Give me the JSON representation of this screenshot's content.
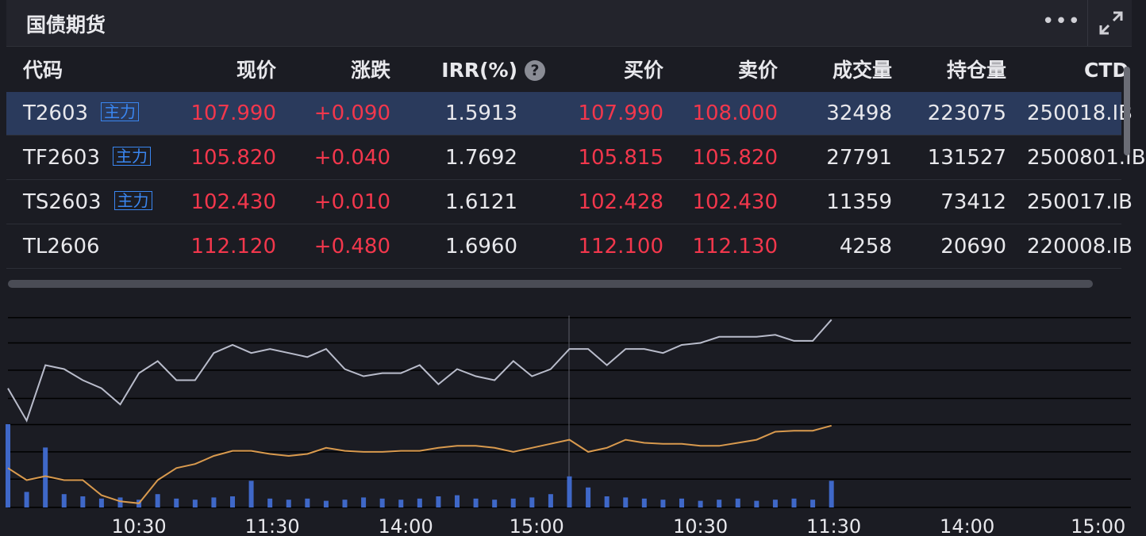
{
  "header": {
    "title": "国债期货"
  },
  "table": {
    "columns": [
      "代码",
      "现价",
      "涨跌",
      "IRR(%)",
      "买价",
      "卖价",
      "成交量",
      "持仓量",
      "CTD"
    ],
    "rows": [
      {
        "code": "T2603",
        "tag": "主力",
        "price": "107.990",
        "change": "+0.090",
        "irr": "1.5913",
        "bid": "107.990",
        "ask": "108.000",
        "volume": "32498",
        "oi": "223075",
        "ctd": "250018.IB"
      },
      {
        "code": "TF2603",
        "tag": "主力",
        "price": "105.820",
        "change": "+0.040",
        "irr": "1.7692",
        "bid": "105.815",
        "ask": "105.820",
        "volume": "27791",
        "oi": "131527",
        "ctd": "2500801.IB"
      },
      {
        "code": "TS2603",
        "tag": "主力",
        "price": "102.430",
        "change": "+0.010",
        "irr": "1.6121",
        "bid": "102.428",
        "ask": "102.430",
        "volume": "11359",
        "oi": "73412",
        "ctd": "250017.IB"
      },
      {
        "code": "TL2606",
        "price": "112.120",
        "change": "+0.480",
        "irr": "1.6960",
        "bid": "112.100",
        "ask": "112.130",
        "volume": "4258",
        "oi": "20690",
        "ctd": "220008.IB"
      }
    ]
  },
  "chart_data": {
    "type": "line",
    "x": [
      0,
      8,
      16,
      24,
      32,
      40,
      48,
      56,
      64,
      72,
      80,
      88,
      96,
      104,
      112,
      120,
      128,
      136,
      144,
      152,
      160,
      168,
      176,
      184,
      192,
      200,
      208,
      216,
      224,
      232,
      240,
      248,
      256,
      264,
      272,
      280,
      288,
      296,
      304,
      312,
      320,
      328,
      336,
      344,
      352
    ],
    "xlim": [
      0,
      480
    ],
    "xticks": [
      {
        "value": 56,
        "label": "10:30"
      },
      {
        "value": 113,
        "label": "11:30"
      },
      {
        "value": 170,
        "label": "14:00"
      },
      {
        "value": 226,
        "label": "15:00"
      },
      {
        "value": 296,
        "label": "10:30"
      },
      {
        "value": 353,
        "label": "11:30"
      },
      {
        "value": 410,
        "label": "14:00"
      },
      {
        "value": 466,
        "label": "15:00"
      }
    ],
    "ylim": [
      107.8,
      108.02
    ],
    "yticks": [
      107.804,
      107.832,
      107.859,
      107.886,
      107.912,
      107.94,
      107.967,
      107.992
    ],
    "y2lim": [
      0,
      1000
    ],
    "grid": true,
    "series": [
      {
        "color": "#b9bccb",
        "values": [
          107.922,
          107.89,
          107.945,
          107.941,
          107.93,
          107.922,
          107.906,
          107.937,
          107.949,
          107.93,
          107.93,
          107.957,
          107.965,
          107.957,
          107.961,
          107.957,
          107.953,
          107.961,
          107.941,
          107.934,
          107.937,
          107.937,
          107.945,
          107.926,
          107.941,
          107.934,
          107.93,
          107.949,
          107.934,
          107.941,
          107.961,
          107.961,
          107.945,
          107.961,
          107.961,
          107.957,
          107.965,
          107.967,
          107.973,
          107.973,
          107.973,
          107.975,
          107.969,
          107.969,
          107.99
        ]
      },
      {
        "color": "#d99a4e",
        "values": [
          107.843,
          107.831,
          107.835,
          107.831,
          107.831,
          107.816,
          107.81,
          107.808,
          107.831,
          107.843,
          107.847,
          107.855,
          107.86,
          107.86,
          107.857,
          107.855,
          107.857,
          107.863,
          107.86,
          107.859,
          107.859,
          107.86,
          107.86,
          107.863,
          107.865,
          107.865,
          107.863,
          107.859,
          107.863,
          107.867,
          107.871,
          107.859,
          107.863,
          107.871,
          107.868,
          107.867,
          107.867,
          107.865,
          107.865,
          107.868,
          107.871,
          107.879,
          107.88,
          107.88,
          107.885
        ]
      },
      {
        "type": "bar",
        "axis": "y2",
        "color": "#3f68c8",
        "values": [
          375,
          70,
          270,
          60,
          50,
          40,
          45,
          35,
          60,
          40,
          35,
          45,
          50,
          120,
          40,
          35,
          40,
          30,
          35,
          45,
          40,
          35,
          40,
          50,
          55,
          40,
          35,
          40,
          45,
          60,
          140,
          90,
          50,
          45,
          40,
          35,
          40,
          30,
          35,
          40,
          30,
          35,
          40,
          35,
          120
        ]
      }
    ]
  }
}
